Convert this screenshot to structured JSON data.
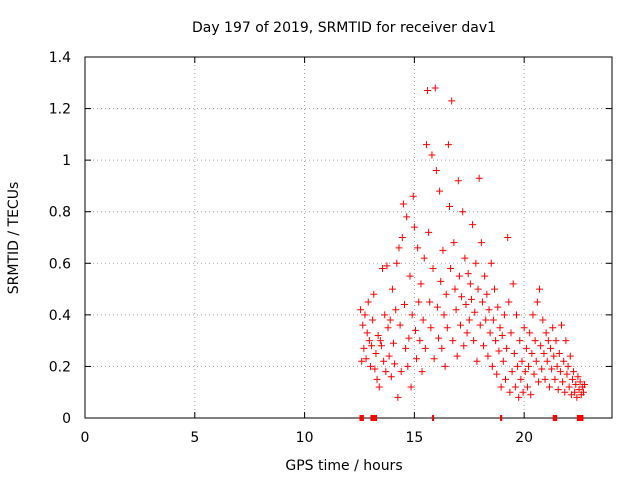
{
  "chart_data": {
    "type": "scatter",
    "title": "Day 197 of 2019, SRMTID for receiver dav1",
    "xlabel": "GPS time / hours",
    "ylabel": "SRMTID / TECUs",
    "xlim": [
      0,
      24
    ],
    "ylim": [
      0,
      1.4
    ],
    "x_ticks": [
      "0",
      "5",
      "10",
      "15",
      "20"
    ],
    "y_ticks": [
      "0",
      "0.2",
      "0.4",
      "0.6",
      "0.8",
      "1",
      "1.2",
      "1.4"
    ],
    "grid": true,
    "marker": "+",
    "color": "#ff0000",
    "series": [
      {
        "name": "SRMTID",
        "points": [
          [
            12.55,
            0.42
          ],
          [
            12.6,
            0.22
          ],
          [
            12.65,
            0.36
          ],
          [
            12.7,
            0.27
          ],
          [
            12.75,
            0.4
          ],
          [
            12.8,
            0.23
          ],
          [
            12.85,
            0.33
          ],
          [
            12.9,
            0.45
          ],
          [
            12.95,
            0.3
          ],
          [
            13.0,
            0.2
          ],
          [
            13.05,
            0.28
          ],
          [
            13.1,
            0.38
          ],
          [
            13.15,
            0.48
          ],
          [
            13.2,
            0.19
          ],
          [
            13.25,
            0.25
          ],
          [
            13.3,
            0.15
          ],
          [
            13.35,
            0.32
          ],
          [
            13.4,
            0.12
          ],
          [
            13.45,
            0.3
          ],
          [
            13.5,
            0.28
          ],
          [
            13.55,
            0.58
          ],
          [
            13.6,
            0.22
          ],
          [
            13.65,
            0.4
          ],
          [
            13.7,
            0.18
          ],
          [
            13.75,
            0.59
          ],
          [
            13.8,
            0.35
          ],
          [
            13.85,
            0.24
          ],
          [
            13.9,
            0.38
          ],
          [
            13.95,
            0.16
          ],
          [
            14.0,
            0.5
          ],
          [
            14.05,
            0.29
          ],
          [
            14.1,
            0.21
          ],
          [
            14.15,
            0.42
          ],
          [
            14.2,
            0.6
          ],
          [
            14.25,
            0.08
          ],
          [
            14.3,
            0.66
          ],
          [
            14.35,
            0.36
          ],
          [
            14.4,
            0.18
          ],
          [
            14.45,
            0.7
          ],
          [
            14.5,
            0.83
          ],
          [
            14.55,
            0.44
          ],
          [
            14.6,
            0.27
          ],
          [
            14.65,
            0.78
          ],
          [
            14.7,
            0.2
          ],
          [
            14.75,
            0.31
          ],
          [
            14.8,
            0.55
          ],
          [
            14.85,
            0.12
          ],
          [
            14.9,
            0.4
          ],
          [
            14.95,
            0.86
          ],
          [
            15.0,
            0.74
          ],
          [
            15.05,
            0.34
          ],
          [
            15.1,
            0.23
          ],
          [
            15.15,
            0.66
          ],
          [
            15.2,
            0.45
          ],
          [
            15.25,
            0.3
          ],
          [
            15.3,
            0.52
          ],
          [
            15.35,
            0.18
          ],
          [
            15.4,
            0.38
          ],
          [
            15.45,
            0.62
          ],
          [
            15.5,
            0.27
          ],
          [
            15.55,
            1.06
          ],
          [
            15.6,
            1.27
          ],
          [
            15.65,
            0.72
          ],
          [
            15.7,
            0.45
          ],
          [
            15.75,
            0.35
          ],
          [
            15.8,
            1.02
          ],
          [
            15.85,
            0.58
          ],
          [
            15.9,
            0.23
          ],
          [
            15.95,
            1.28
          ],
          [
            16.0,
            0.96
          ],
          [
            16.05,
            0.43
          ],
          [
            16.1,
            0.31
          ],
          [
            16.15,
            0.88
          ],
          [
            16.2,
            0.53
          ],
          [
            16.25,
            0.27
          ],
          [
            16.3,
            0.65
          ],
          [
            16.35,
            0.4
          ],
          [
            16.4,
            0.2
          ],
          [
            16.45,
            0.48
          ],
          [
            16.5,
            0.35
          ],
          [
            16.55,
            1.06
          ],
          [
            16.6,
            0.82
          ],
          [
            16.65,
            0.58
          ],
          [
            16.7,
            1.23
          ],
          [
            16.75,
            0.3
          ],
          [
            16.8,
            0.68
          ],
          [
            16.85,
            0.5
          ],
          [
            16.9,
            0.42
          ],
          [
            16.95,
            0.24
          ],
          [
            17.0,
            0.92
          ],
          [
            17.05,
            0.55
          ],
          [
            17.1,
            0.36
          ],
          [
            17.15,
            0.47
          ],
          [
            17.2,
            0.8
          ],
          [
            17.25,
            0.28
          ],
          [
            17.3,
            0.62
          ],
          [
            17.35,
            0.44
          ],
          [
            17.4,
            0.33
          ],
          [
            17.45,
            0.56
          ],
          [
            17.5,
            0.38
          ],
          [
            17.55,
            0.52
          ],
          [
            17.6,
            0.46
          ],
          [
            17.65,
            0.75
          ],
          [
            17.7,
            0.3
          ],
          [
            17.75,
            0.41
          ],
          [
            17.8,
            0.6
          ],
          [
            17.85,
            0.22
          ],
          [
            17.9,
            0.5
          ],
          [
            17.95,
            0.93
          ],
          [
            18.0,
            0.36
          ],
          [
            18.05,
            0.68
          ],
          [
            18.1,
            0.45
          ],
          [
            18.15,
            0.28
          ],
          [
            18.2,
            0.55
          ],
          [
            18.25,
            0.38
          ],
          [
            18.3,
            0.48
          ],
          [
            18.35,
            0.24
          ],
          [
            18.4,
            0.42
          ],
          [
            18.45,
            0.33
          ],
          [
            18.5,
            0.6
          ],
          [
            18.55,
            0.2
          ],
          [
            18.6,
            0.38
          ],
          [
            18.65,
            0.5
          ],
          [
            18.7,
            0.3
          ],
          [
            18.75,
            0.17
          ],
          [
            18.8,
            0.43
          ],
          [
            18.85,
            0.26
          ],
          [
            18.9,
            0.35
          ],
          [
            18.95,
            0.12
          ],
          [
            19.0,
            0.32
          ],
          [
            19.05,
            0.22
          ],
          [
            19.1,
            0.4
          ],
          [
            19.15,
            0.15
          ],
          [
            19.2,
            0.27
          ],
          [
            19.25,
            0.7
          ],
          [
            19.3,
            0.45
          ],
          [
            19.35,
            0.1
          ],
          [
            19.4,
            0.33
          ],
          [
            19.45,
            0.18
          ],
          [
            19.5,
            0.52
          ],
          [
            19.55,
            0.25
          ],
          [
            19.6,
            0.12
          ],
          [
            19.65,
            0.4
          ],
          [
            19.7,
            0.2
          ],
          [
            19.75,
            0.08
          ],
          [
            19.8,
            0.3
          ],
          [
            19.85,
            0.15
          ],
          [
            19.9,
            0.22
          ],
          [
            19.95,
            0.1
          ],
          [
            20.0,
            0.35
          ],
          [
            20.05,
            0.18
          ],
          [
            20.1,
            0.27
          ],
          [
            20.15,
            0.12
          ],
          [
            20.2,
            0.2
          ],
          [
            20.25,
            0.33
          ],
          [
            20.3,
            0.09
          ],
          [
            20.35,
            0.25
          ],
          [
            20.4,
            0.4
          ],
          [
            20.45,
            0.17
          ],
          [
            20.5,
            0.3
          ],
          [
            20.55,
            0.22
          ],
          [
            20.6,
            0.45
          ],
          [
            20.65,
            0.14
          ],
          [
            20.7,
            0.5
          ],
          [
            20.75,
            0.28
          ],
          [
            20.8,
            0.19
          ],
          [
            20.85,
            0.38
          ],
          [
            20.9,
            0.25
          ],
          [
            20.95,
            0.15
          ],
          [
            21.0,
            0.33
          ],
          [
            21.05,
            0.22
          ],
          [
            21.1,
            0.3
          ],
          [
            21.15,
            0.12
          ],
          [
            21.2,
            0.27
          ],
          [
            21.25,
            0.19
          ],
          [
            21.3,
            0.35
          ],
          [
            21.35,
            0.24
          ],
          [
            21.4,
            0.15
          ],
          [
            21.45,
            0.3
          ],
          [
            21.5,
            0.2
          ],
          [
            21.55,
            0.11
          ],
          [
            21.6,
            0.25
          ],
          [
            21.65,
            0.18
          ],
          [
            21.7,
            0.36
          ],
          [
            21.75,
            0.14
          ],
          [
            21.8,
            0.22
          ],
          [
            21.85,
            0.1
          ],
          [
            21.9,
            0.3
          ],
          [
            21.95,
            0.17
          ],
          [
            22.0,
            0.2
          ],
          [
            22.05,
            0.12
          ],
          [
            22.1,
            0.24
          ],
          [
            22.15,
            0.09
          ],
          [
            22.2,
            0.15
          ],
          [
            22.25,
            0.18
          ],
          [
            22.3,
            0.1
          ],
          [
            22.35,
            0.13
          ],
          [
            22.4,
            0.08
          ],
          [
            22.45,
            0.16
          ],
          [
            22.5,
            0.11
          ],
          [
            22.55,
            0.14
          ],
          [
            22.6,
            0.09
          ],
          [
            22.65,
            0.12
          ],
          [
            22.7,
            0.1
          ],
          [
            22.75,
            0.13
          ]
        ]
      }
    ],
    "markers_on_axis": [
      {
        "x_start": 12.5,
        "x_end": 12.7
      },
      {
        "x_start": 13.0,
        "x_end": 13.3
      },
      {
        "x_start": 15.8,
        "x_end": 15.9
      },
      {
        "x_start": 18.9,
        "x_end": 19.0
      },
      {
        "x_start": 21.3,
        "x_end": 21.5
      },
      {
        "x_start": 22.4,
        "x_end": 22.7
      }
    ]
  }
}
